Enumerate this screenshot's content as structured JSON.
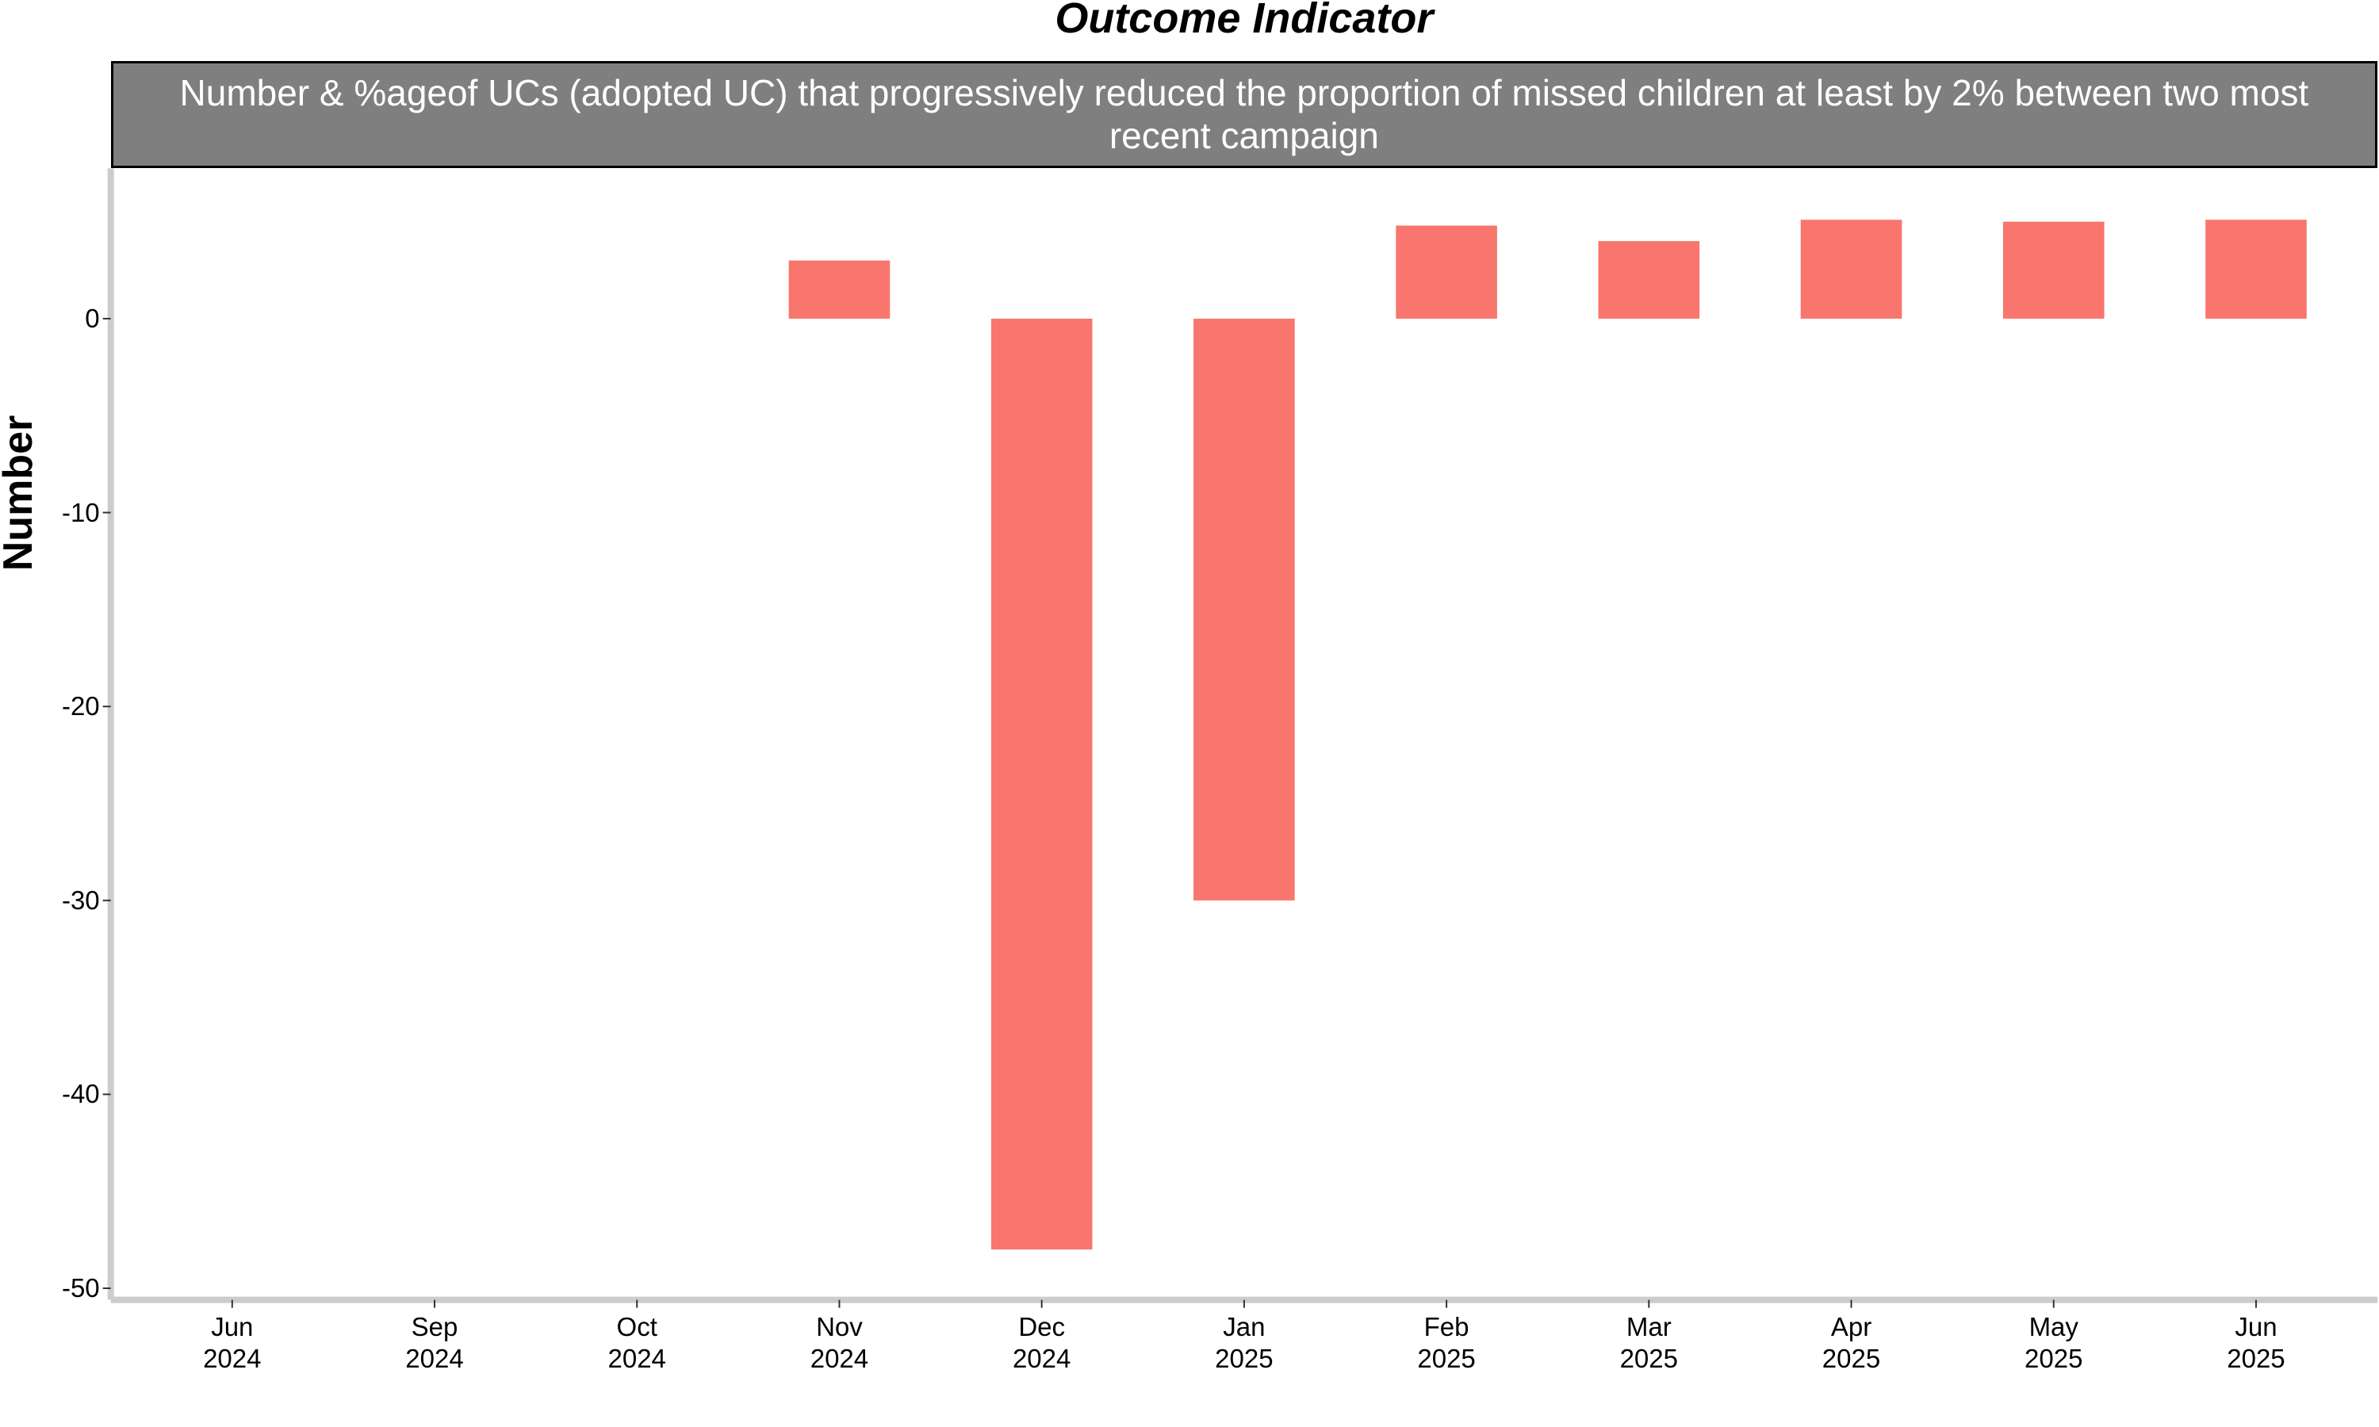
{
  "chart_data": {
    "type": "bar",
    "title": "Outcome Indicator",
    "subtitle": "Number & %ageof UCs (adopted UC) that progressively reduced the proportion of missed children at least by 2% between two most recent campaign",
    "ylabel": "Number",
    "categories": [
      "Jun\n2024",
      "Sep\n2024",
      "Oct\n2024",
      "Nov\n2024",
      "Dec\n2024",
      "Jan\n2025",
      "Feb\n2025",
      "Mar\n2025",
      "Apr\n2025",
      "May\n2025",
      "Jun\n2025"
    ],
    "values": [
      null,
      null,
      null,
      3,
      -48,
      -30,
      4.8,
      4.0,
      5.1,
      5.0,
      5.1
    ],
    "color": "#f8766d",
    "ylim": [
      -50.6,
      7.75
    ],
    "yticks": [
      0,
      -10,
      -20,
      -30,
      -40,
      -50
    ],
    "grid": false
  }
}
